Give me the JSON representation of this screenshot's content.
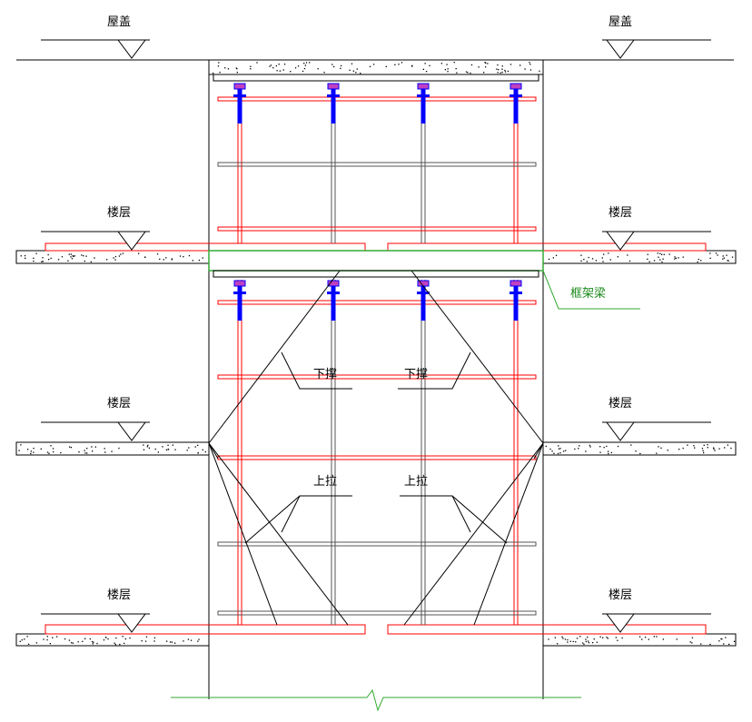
{
  "labels": {
    "roof": "屋盖",
    "floor": "楼层",
    "strut": "下撑",
    "tie": "上拉",
    "frame_beam": "框架梁"
  },
  "colors": {
    "support_tube": "#ff0000",
    "jack": "#0000ff",
    "frame_beam": "#33aa33",
    "line": "#000000"
  }
}
